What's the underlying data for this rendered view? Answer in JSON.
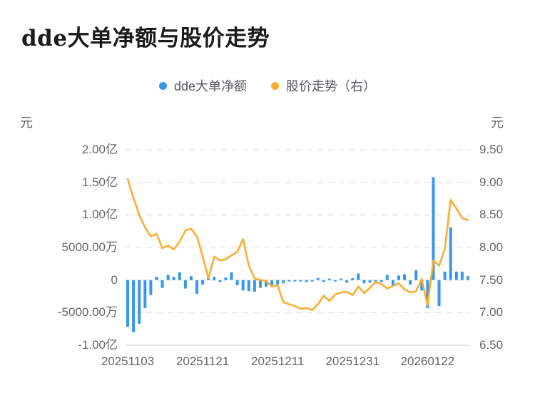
{
  "title": "dde大单净额与股价走势",
  "legend": {
    "items": [
      {
        "label": "dde大单净额",
        "color": "#3798EB"
      },
      {
        "label": "股价走势（右）",
        "color": "#FBAD33"
      }
    ]
  },
  "axes": {
    "left_unit": "元",
    "right_unit": "元",
    "left_ticks": [
      "2.00亿",
      "1.50亿",
      "1.00亿",
      "5000.00万",
      "0",
      "-5000.00万",
      "-1.00亿"
    ],
    "right_ticks": [
      "9.50",
      "9.00",
      "8.50",
      "8.00",
      "7.50",
      "7.00",
      "6.50"
    ],
    "x_ticks": [
      "20251103",
      "20251121",
      "20251211",
      "20251231",
      "20260122"
    ]
  },
  "colors": {
    "bar": "#3798EB",
    "line": "#FBAD33",
    "grid": "#E4E4E4",
    "axis_line": "#D9D9D9",
    "tick_text": "#666666",
    "title_text": "#1B1B1B",
    "legend_text": "#565B62",
    "background": "#FFFFFF"
  },
  "chart_data": {
    "type": "bar+line",
    "title": "dde大单净额与股价走势",
    "n_points": 60,
    "x_tick_labels": [
      "20251103",
      "20251121",
      "20251211",
      "20251231",
      "20260122"
    ],
    "x_tick_indices": [
      0,
      13,
      26,
      39,
      52
    ],
    "left_axis": {
      "unit": "元",
      "tick_labels": [
        "2.00亿",
        "1.50亿",
        "1.00亿",
        "5000.00万",
        "0",
        "-5000.00万",
        "-1.00亿"
      ],
      "tick_values_yi": [
        2.0,
        1.5,
        1.0,
        0.5,
        0,
        -0.5,
        -1.0
      ],
      "ylim_yi": [
        -1.0,
        2.0
      ]
    },
    "right_axis": {
      "unit": "元",
      "tick_labels": [
        "9.50",
        "9.00",
        "8.50",
        "8.00",
        "7.50",
        "7.00",
        "6.50"
      ],
      "tick_values": [
        9.5,
        9.0,
        8.5,
        8.0,
        7.5,
        7.0,
        6.5
      ],
      "ylim": [
        6.5,
        9.5
      ]
    },
    "grid": "horizontal-dashed",
    "legend_position": "top-center",
    "series": [
      {
        "name": "dde大单净额",
        "type": "bar",
        "axis": "left",
        "unit": "亿元",
        "values": [
          -0.72,
          -0.8,
          -0.67,
          -0.43,
          -0.23,
          0.05,
          -0.12,
          0.08,
          0.05,
          0.12,
          -0.13,
          0.06,
          -0.21,
          -0.07,
          0.06,
          0.05,
          -0.03,
          0.04,
          0.12,
          -0.08,
          -0.16,
          -0.17,
          -0.18,
          -0.12,
          -0.1,
          -0.08,
          -0.07,
          -0.05,
          -0.02,
          -0.02,
          -0.02,
          -0.03,
          -0.02,
          0.03,
          -0.03,
          0.02,
          -0.02,
          0.02,
          -0.04,
          0.03,
          0.1,
          -0.05,
          -0.04,
          -0.05,
          -0.03,
          0.08,
          -0.08,
          0.07,
          0.09,
          -0.07,
          0.15,
          -0.16,
          -0.43,
          1.58,
          -0.4,
          0.13,
          0.81,
          0.13,
          0.13,
          0.06
        ]
      },
      {
        "name": "股价走势（右）",
        "type": "line",
        "axis": "right",
        "unit": "元",
        "values": [
          9.05,
          8.76,
          8.5,
          8.31,
          8.17,
          8.21,
          7.99,
          8.03,
          7.97,
          8.09,
          8.26,
          8.29,
          8.17,
          7.86,
          7.53,
          7.86,
          7.8,
          7.82,
          7.88,
          7.93,
          8.13,
          7.72,
          7.53,
          7.5,
          7.49,
          7.4,
          7.42,
          7.16,
          7.13,
          7.1,
          7.06,
          7.07,
          7.04,
          7.13,
          7.26,
          7.18,
          7.28,
          7.31,
          7.32,
          7.27,
          7.4,
          7.3,
          7.38,
          7.47,
          7.44,
          7.37,
          7.41,
          7.45,
          7.36,
          7.31,
          7.33,
          7.52,
          7.11,
          7.8,
          7.72,
          7.98,
          8.73,
          8.6,
          8.45,
          8.42
        ]
      }
    ]
  }
}
